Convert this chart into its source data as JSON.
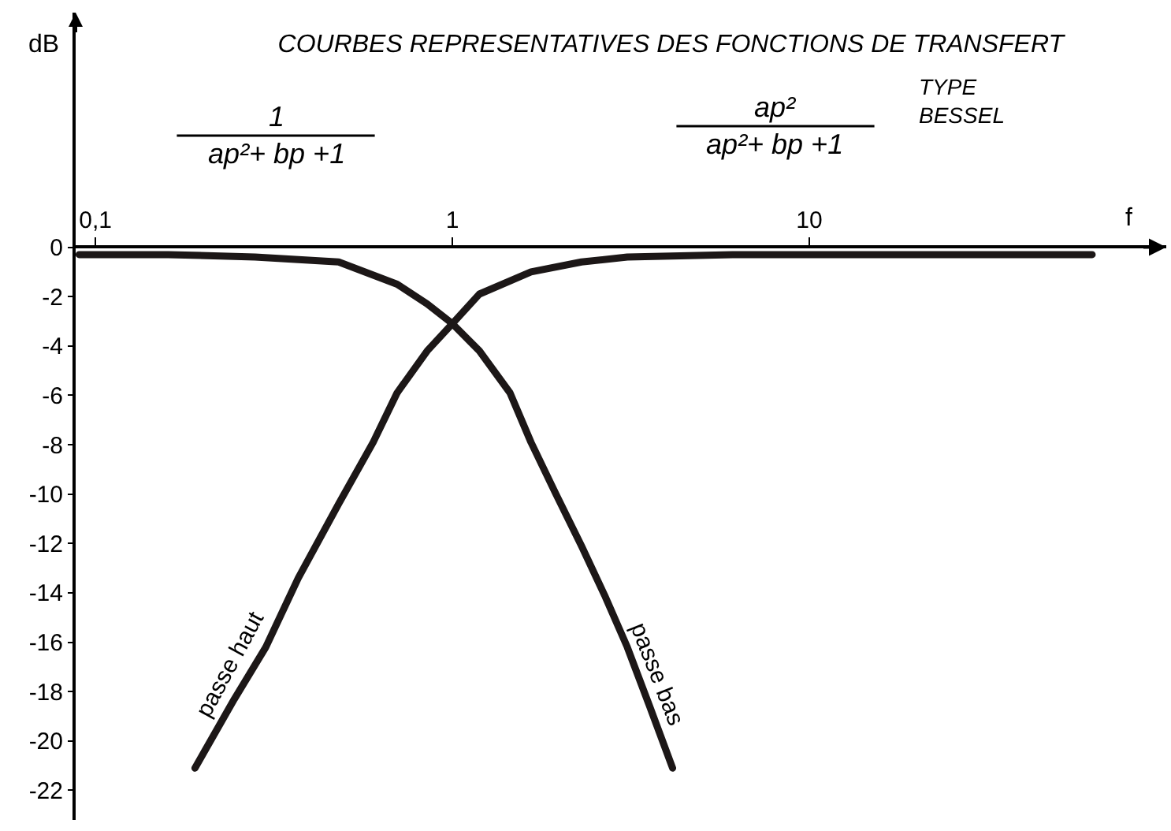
{
  "chart_data": {
    "type": "line",
    "title": "COURBES REPRESENTATIVES DES FONCTIONS DE TRANSFERT",
    "subtitle": "TYPE\nBESSEL",
    "xlabel": "f",
    "ylabel": "dB",
    "annotations": [
      "1\nap²+ bp +1",
      "ap²\nap²+ bp +1"
    ],
    "log": "x",
    "xlim": [
      0.088,
      100
    ],
    "xticks": [
      {
        "value": 0.1,
        "label": "0,1"
      },
      1,
      10
    ],
    "ylim": [
      -23.2,
      9.5
    ],
    "yticks": [
      0,
      -2,
      -4,
      -6,
      -8,
      -10,
      -12,
      -14,
      -16,
      -18,
      -20,
      -22
    ],
    "series": [
      {
        "name": "passe bas",
        "color": "#1c1717",
        "x": [
          0.09,
          0.16,
          0.28,
          0.48,
          0.7,
          0.85,
          1.0,
          1.19,
          1.45,
          1.66,
          1.95,
          2.3,
          2.67,
          3.09,
          3.57,
          4.14
        ],
        "values": [
          -0.3,
          -0.3,
          -0.4,
          -0.6,
          -1.5,
          -2.3,
          -3.1,
          -4.2,
          -5.9,
          -7.9,
          -10.0,
          -12.1,
          -14.1,
          -16.2,
          -18.6,
          -21.1
        ]
      },
      {
        "name": "passe haut",
        "color": "#1c1717",
        "x": [
          0.19,
          0.245,
          0.3,
          0.37,
          0.48,
          0.6,
          0.7,
          0.85,
          1.0,
          1.19,
          1.66,
          2.3,
          3.09,
          6.1,
          62
        ],
        "values": [
          -21.1,
          -18.3,
          -16.2,
          -13.4,
          -10.4,
          -7.9,
          -5.9,
          -4.2,
          -3.1,
          -1.9,
          -1.0,
          -0.6,
          -0.4,
          -0.3,
          -0.3
        ]
      }
    ]
  }
}
